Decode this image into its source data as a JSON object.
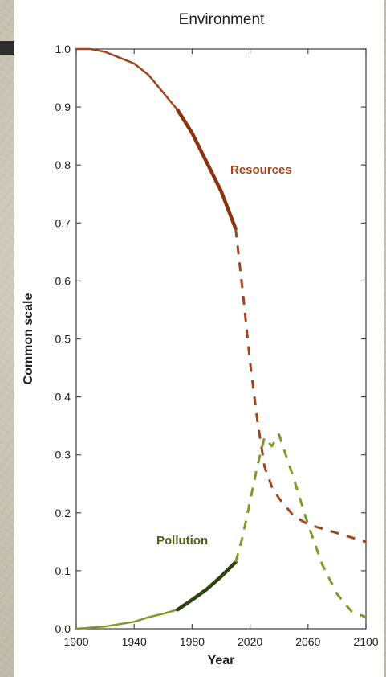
{
  "chart_data": {
    "type": "line",
    "title": "Environment",
    "xlabel": "Year",
    "ylabel": "Common scale",
    "xlim": [
      1900,
      2100
    ],
    "ylim": [
      0.0,
      1.0
    ],
    "xticks": [
      "1900",
      "1940",
      "1980",
      "2020",
      "2060",
      "2100"
    ],
    "yticks": [
      "0.0",
      "0.1",
      "0.2",
      "0.3",
      "0.4",
      "0.5",
      "0.6",
      "0.7",
      "0.8",
      "0.9",
      "1.0"
    ],
    "grid": false,
    "series": [
      {
        "name": "Resources",
        "color": "#a0461e",
        "observed": {
          "x": [
            1900,
            1910,
            1920,
            1930,
            1940,
            1950,
            1960,
            1970
          ],
          "y": [
            1.0,
            1.0,
            0.995,
            0.985,
            0.975,
            0.955,
            0.925,
            0.895
          ]
        },
        "observed_recent": {
          "x": [
            1970,
            1975,
            1980,
            1990,
            2000,
            2010
          ],
          "y": [
            0.895,
            0.875,
            0.855,
            0.805,
            0.755,
            0.69
          ]
        },
        "projection": {
          "x": [
            2010,
            2015,
            2020,
            2025,
            2030,
            2035,
            2040,
            2050,
            2060,
            2080,
            2100
          ],
          "y": [
            0.69,
            0.58,
            0.46,
            0.36,
            0.28,
            0.245,
            0.225,
            0.195,
            0.18,
            0.165,
            0.15
          ]
        }
      },
      {
        "name": "Pollution",
        "color": "#7d9a2a",
        "observed": {
          "x": [
            1900,
            1910,
            1920,
            1930,
            1940,
            1950,
            1960,
            1970
          ],
          "y": [
            0.0,
            0.002,
            0.004,
            0.008,
            0.012,
            0.02,
            0.026,
            0.033
          ]
        },
        "observed_recent": {
          "x": [
            1970,
            1980,
            1990,
            2000,
            2010
          ],
          "y": [
            0.033,
            0.05,
            0.068,
            0.09,
            0.115
          ]
        },
        "projection": {
          "x": [
            2010,
            2015,
            2020,
            2025,
            2030,
            2035,
            2040,
            2050,
            2060,
            2070,
            2080,
            2090,
            2100
          ],
          "y": [
            0.115,
            0.16,
            0.22,
            0.28,
            0.33,
            0.315,
            0.335,
            0.26,
            0.18,
            0.11,
            0.06,
            0.03,
            0.02
          ]
        }
      }
    ]
  }
}
